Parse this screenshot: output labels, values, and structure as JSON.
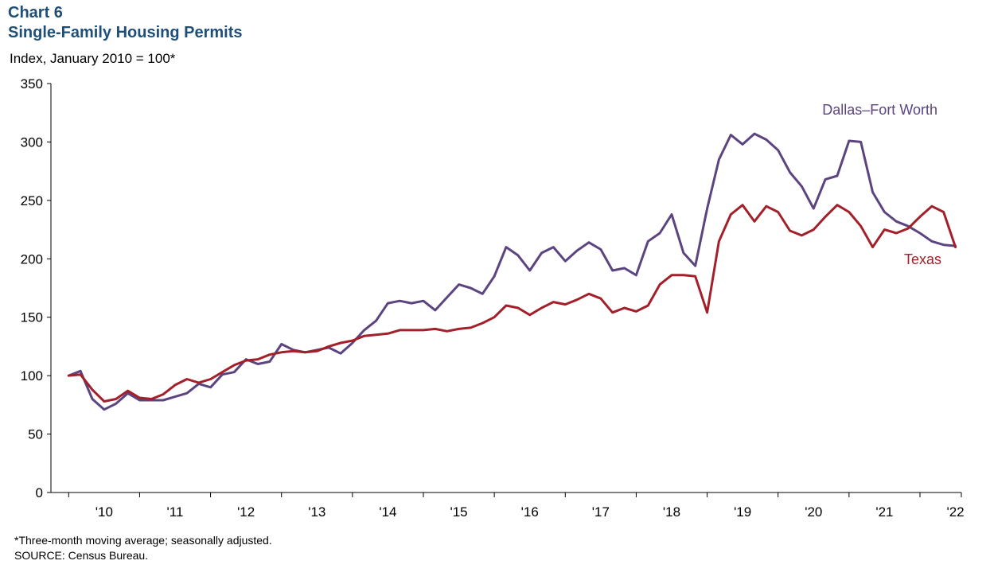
{
  "header": {
    "chart_label": "Chart 6",
    "title": "Single-Family Housing Permits",
    "y_unit": "Index, January 2010 = 100*"
  },
  "footer": {
    "note": "*Three-month moving average; seasonally adjusted.",
    "source": "SOURCE:  Census Bureau."
  },
  "chart_data": {
    "type": "line",
    "title": "Single-Family Housing Permits",
    "ylabel": "Index, January 2010 = 100*",
    "ylim": [
      0,
      350
    ],
    "y_ticks": [
      0,
      50,
      100,
      150,
      200,
      250,
      300,
      350
    ],
    "x_range": [
      "2009-10",
      "2022-08"
    ],
    "x_tick_labels": [
      {
        "label": "'10",
        "year": 2010
      },
      {
        "label": "'11",
        "year": 2011
      },
      {
        "label": "'12",
        "year": 2012
      },
      {
        "label": "'13",
        "year": 2013
      },
      {
        "label": "'14",
        "year": 2014
      },
      {
        "label": "'15",
        "year": 2015
      },
      {
        "label": "'16",
        "year": 2016
      },
      {
        "label": "'17",
        "year": 2017
      },
      {
        "label": "'18",
        "year": 2018
      },
      {
        "label": "'19",
        "year": 2019
      },
      {
        "label": "'20",
        "year": 2020
      },
      {
        "label": "'21",
        "year": 2021
      },
      {
        "label": "'22",
        "year": 2022
      }
    ],
    "grid": false,
    "series": [
      {
        "name": "Dallas–Fort Worth",
        "color": "#5b4480",
        "x": [
          "2010-01",
          "2010-03",
          "2010-05",
          "2010-07",
          "2010-09",
          "2010-11",
          "2011-01",
          "2011-03",
          "2011-05",
          "2011-07",
          "2011-09",
          "2011-11",
          "2012-01",
          "2012-03",
          "2012-05",
          "2012-07",
          "2012-09",
          "2012-11",
          "2013-01",
          "2013-03",
          "2013-05",
          "2013-07",
          "2013-09",
          "2013-11",
          "2014-01",
          "2014-03",
          "2014-05",
          "2014-07",
          "2014-09",
          "2014-11",
          "2015-01",
          "2015-03",
          "2015-05",
          "2015-07",
          "2015-09",
          "2015-11",
          "2016-01",
          "2016-03",
          "2016-05",
          "2016-07",
          "2016-09",
          "2016-11",
          "2017-01",
          "2017-03",
          "2017-05",
          "2017-07",
          "2017-09",
          "2017-11",
          "2018-01",
          "2018-03",
          "2018-05",
          "2018-07",
          "2018-09",
          "2018-11",
          "2019-01",
          "2019-03",
          "2019-05",
          "2019-07",
          "2019-09",
          "2019-11",
          "2020-01",
          "2020-03",
          "2020-05",
          "2020-07",
          "2020-09",
          "2020-11",
          "2021-01",
          "2021-03",
          "2021-05",
          "2021-07",
          "2021-09",
          "2021-11",
          "2022-01",
          "2022-03",
          "2022-05",
          "2022-07"
        ],
        "values": [
          100,
          104,
          80,
          71,
          76,
          85,
          79,
          79,
          79,
          82,
          85,
          93,
          90,
          101,
          103,
          114,
          110,
          112,
          127,
          122,
          120,
          122,
          124,
          119,
          128,
          139,
          147,
          162,
          164,
          162,
          164,
          156,
          167,
          178,
          175,
          170,
          185,
          210,
          203,
          190,
          205,
          210,
          198,
          207,
          214,
          208,
          190,
          192,
          186,
          215,
          222,
          238,
          205,
          194,
          243,
          285,
          306,
          298,
          307,
          302,
          293,
          274,
          262,
          243,
          268,
          271,
          301,
          300,
          257,
          240,
          232,
          228,
          222,
          215,
          212,
          211
        ],
        "label_position": "above-right"
      },
      {
        "name": "Texas",
        "color": "#a3202a",
        "x": [
          "2010-01",
          "2010-03",
          "2010-05",
          "2010-07",
          "2010-09",
          "2010-11",
          "2011-01",
          "2011-03",
          "2011-05",
          "2011-07",
          "2011-09",
          "2011-11",
          "2012-01",
          "2012-03",
          "2012-05",
          "2012-07",
          "2012-09",
          "2012-11",
          "2013-01",
          "2013-03",
          "2013-05",
          "2013-07",
          "2013-09",
          "2013-11",
          "2014-01",
          "2014-03",
          "2014-05",
          "2014-07",
          "2014-09",
          "2014-11",
          "2015-01",
          "2015-03",
          "2015-05",
          "2015-07",
          "2015-09",
          "2015-11",
          "2016-01",
          "2016-03",
          "2016-05",
          "2016-07",
          "2016-09",
          "2016-11",
          "2017-01",
          "2017-03",
          "2017-05",
          "2017-07",
          "2017-09",
          "2017-11",
          "2018-01",
          "2018-03",
          "2018-05",
          "2018-07",
          "2018-09",
          "2018-11",
          "2019-01",
          "2019-03",
          "2019-05",
          "2019-07",
          "2019-09",
          "2019-11",
          "2020-01",
          "2020-03",
          "2020-05",
          "2020-07",
          "2020-09",
          "2020-11",
          "2021-01",
          "2021-03",
          "2021-05",
          "2021-07",
          "2021-09",
          "2021-11",
          "2022-01",
          "2022-03",
          "2022-05",
          "2022-07"
        ],
        "values": [
          100,
          101,
          88,
          78,
          80,
          87,
          81,
          80,
          84,
          92,
          97,
          94,
          97,
          103,
          109,
          113,
          114,
          118,
          120,
          121,
          120,
          121,
          125,
          128,
          130,
          134,
          135,
          136,
          139,
          139,
          139,
          140,
          138,
          140,
          141,
          145,
          150,
          160,
          158,
          152,
          158,
          163,
          161,
          165,
          170,
          166,
          154,
          158,
          155,
          160,
          178,
          186,
          186,
          185,
          154,
          215,
          238,
          246,
          232,
          245,
          240,
          224,
          220,
          225,
          236,
          246,
          240,
          228,
          210,
          225,
          222,
          226,
          236,
          245,
          240,
          210
        ],
        "label_position": "below-right"
      }
    ]
  }
}
